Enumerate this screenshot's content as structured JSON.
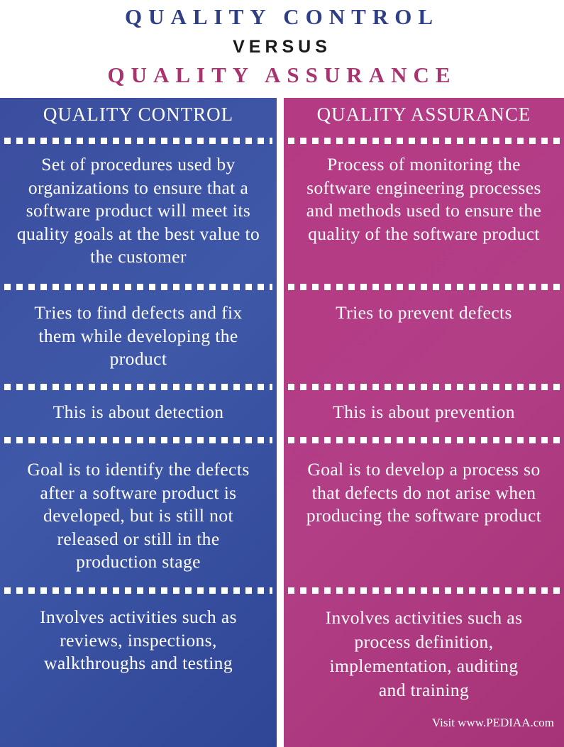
{
  "title": {
    "line1": "QUALITY CONTROL",
    "line2": "VERSUS",
    "line3": "QUALITY ASSURANCE"
  },
  "colors": {
    "title_blue": "#2f3f86",
    "title_dark": "#1a1a1a",
    "title_magenta": "#a8346f",
    "left_column": "#3b4d9e",
    "right_column": "#b23e86"
  },
  "columns": {
    "left": {
      "header": "QUALITY CONTROL",
      "rows": [
        "Set of procedures used by organizations to ensure that a software product will meet its quality goals at the best value to the customer",
        "Tries to find defects and fix them while developing the product",
        "This is about detection",
        "Goal is to identify the defects after a software product is developed, but is still not released or still in the production stage",
        "Involves activities such as reviews, inspections, walkthroughs and testing"
      ]
    },
    "right": {
      "header": "QUALITY ASSURANCE",
      "rows": [
        "Process of monitoring the software engineering processes and methods used to ensure the quality of the software product",
        "Tries to prevent defects",
        "This is about prevention",
        "Goal is to develop a process so that defects do not arise when producing the software product",
        "Involves activities such as process definition, implementation, auditing and training"
      ]
    }
  },
  "credit": "Visit www.PEDIAA.com"
}
